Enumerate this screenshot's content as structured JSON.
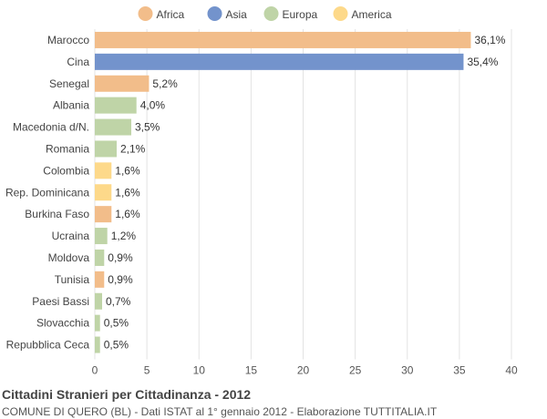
{
  "chart_data": {
    "type": "bar",
    "orientation": "horizontal",
    "title": "Cittadini Stranieri per Cittadinanza - 2012",
    "subtitle": "COMUNE DI QUERO (BL) - Dati ISTAT al 1° gennaio 2012 - Elaborazione TUTTITALIA.IT",
    "legend": [
      {
        "name": "Africa",
        "color": "#f2bd8a"
      },
      {
        "name": "Asia",
        "color": "#7393cc"
      },
      {
        "name": "Europa",
        "color": "#bfd4a7"
      },
      {
        "name": "America",
        "color": "#fdd98a"
      }
    ],
    "categories": [
      "Marocco",
      "Cina",
      "Senegal",
      "Albania",
      "Macedonia d/N.",
      "Romania",
      "Colombia",
      "Rep. Dominicana",
      "Burkina Faso",
      "Ucraina",
      "Moldova",
      "Tunisia",
      "Paesi Bassi",
      "Slovacchia",
      "Repubblica Ceca"
    ],
    "values": [
      36.1,
      35.4,
      5.2,
      4.0,
      3.5,
      2.1,
      1.6,
      1.6,
      1.6,
      1.2,
      0.9,
      0.9,
      0.7,
      0.5,
      0.5
    ],
    "value_labels": [
      "36,1%",
      "35,4%",
      "5,2%",
      "4,0%",
      "3,5%",
      "2,1%",
      "1,6%",
      "1,6%",
      "1,6%",
      "1,2%",
      "0,9%",
      "0,9%",
      "0,7%",
      "0,5%",
      "0,5%"
    ],
    "groups": [
      "Africa",
      "Asia",
      "Africa",
      "Europa",
      "Europa",
      "Europa",
      "America",
      "America",
      "Africa",
      "Europa",
      "Europa",
      "Africa",
      "Europa",
      "Europa",
      "Europa"
    ],
    "xlim": [
      0,
      40
    ],
    "xticks": [
      0,
      5,
      10,
      15,
      20,
      25,
      30,
      35,
      40
    ],
    "grid": true,
    "legend_position": "top"
  }
}
